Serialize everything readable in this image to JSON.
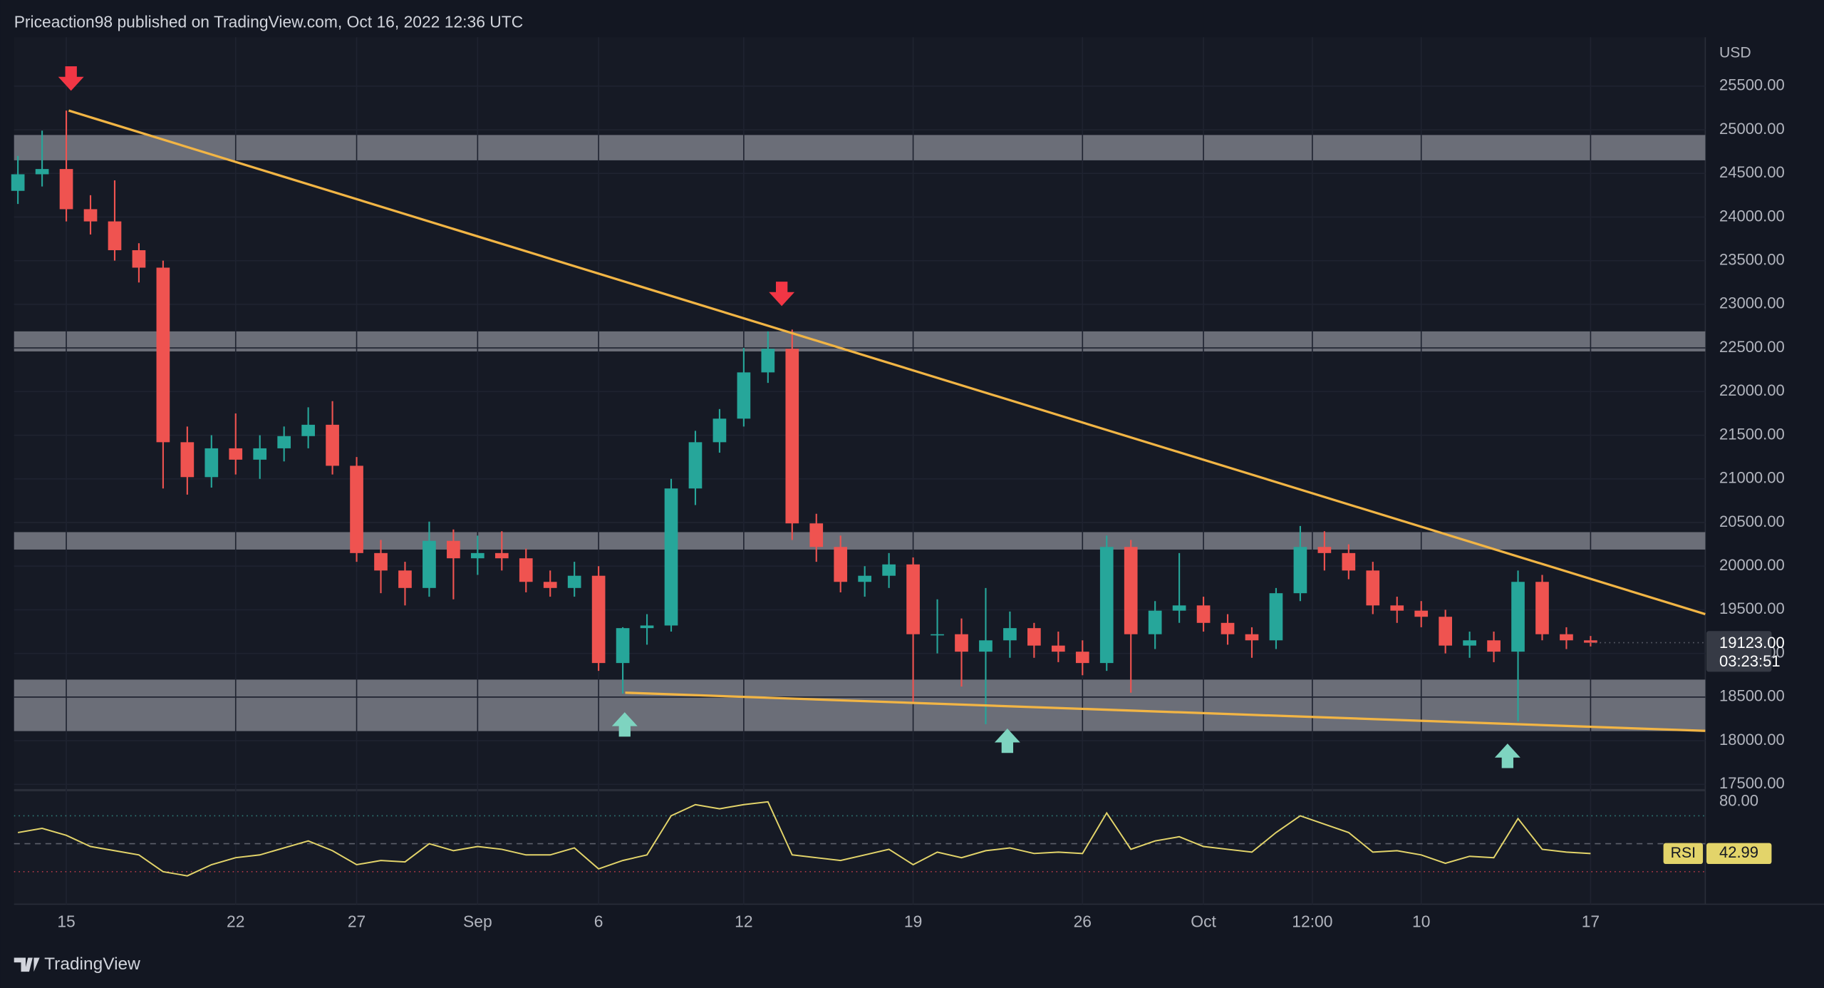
{
  "header": {
    "text": "Priceaction98 published on TradingView.com, Oct 16, 2022 12:36 UTC"
  },
  "footer": {
    "brand": "TradingView"
  },
  "chart_data": [
    {
      "type": "candlestick",
      "currency": "USD",
      "x": [
        -2,
        -1,
        0,
        1,
        2,
        3,
        4,
        5,
        6,
        7,
        8,
        9,
        10,
        11,
        12,
        13,
        14,
        15,
        16,
        17,
        18,
        19,
        20,
        21,
        22,
        23,
        24,
        25,
        26,
        27,
        28,
        29,
        30,
        31,
        32,
        33,
        34,
        35,
        36,
        37,
        38,
        39,
        40,
        41,
        42,
        43,
        44,
        45,
        46,
        47,
        48,
        49,
        50,
        51,
        52,
        53,
        54,
        55,
        56,
        57,
        58,
        59,
        60,
        61,
        62,
        63
      ],
      "open": [
        24300,
        24490,
        24550,
        24090,
        23950,
        23620,
        23420,
        21420,
        21020,
        21350,
        21220,
        21350,
        21490,
        21620,
        21150,
        20150,
        19950,
        19750,
        20290,
        20090,
        20150,
        20090,
        19820,
        19750,
        19890,
        18890,
        19290,
        19320,
        20890,
        21420,
        21690,
        22220,
        22490,
        20490,
        20220,
        19820,
        19890,
        20020,
        19220,
        19220,
        19020,
        19150,
        19290,
        19090,
        19020,
        18890,
        20220,
        19220,
        19490,
        19550,
        19350,
        19220,
        19150,
        19690,
        20220,
        20150,
        19950,
        19550,
        19490,
        19420,
        19090,
        19150,
        19020,
        19820,
        19220,
        19150
      ],
      "high": [
        24700,
        24990,
        25220,
        24250,
        24420,
        23700,
        23500,
        21600,
        21500,
        21750,
        21500,
        21600,
        21820,
        21890,
        21250,
        20300,
        20050,
        20510,
        20420,
        20350,
        20400,
        20200,
        19950,
        20050,
        20000,
        19300,
        19450,
        21000,
        21550,
        21800,
        22500,
        22690,
        22710,
        20600,
        20350,
        20000,
        20150,
        20100,
        19620,
        19400,
        19750,
        19480,
        19350,
        19250,
        19150,
        20350,
        20300,
        19600,
        20150,
        19650,
        19450,
        19300,
        19750,
        20460,
        20400,
        20250,
        20050,
        19650,
        19600,
        19500,
        19250,
        19250,
        19950,
        19900,
        19300,
        19200
      ],
      "low": [
        24150,
        24350,
        23950,
        23800,
        23500,
        23250,
        20890,
        20820,
        20900,
        21050,
        21000,
        21200,
        21350,
        21050,
        20050,
        19690,
        19550,
        19650,
        19620,
        19900,
        19950,
        19700,
        19650,
        19650,
        18800,
        18540,
        19100,
        19250,
        20700,
        21300,
        21600,
        22100,
        20300,
        20050,
        19700,
        19650,
        19750,
        18420,
        19000,
        18620,
        18190,
        18950,
        18950,
        18900,
        18750,
        18800,
        18550,
        19050,
        19350,
        19250,
        19100,
        18950,
        19050,
        19600,
        19950,
        19850,
        19450,
        19350,
        19300,
        19000,
        18950,
        18900,
        18220,
        19150,
        19050,
        19080
      ],
      "close": [
        24490,
        24550,
        24090,
        23950,
        23620,
        23420,
        21420,
        21020,
        21350,
        21220,
        21350,
        21490,
        21620,
        21150,
        20150,
        19950,
        19750,
        20290,
        20090,
        20150,
        20090,
        19820,
        19750,
        19890,
        18890,
        19290,
        19320,
        20890,
        21420,
        21690,
        22220,
        22490,
        20490,
        20220,
        19820,
        19890,
        20020,
        19220,
        19220,
        19020,
        19150,
        19290,
        19090,
        19020,
        18890,
        20220,
        19220,
        19490,
        19550,
        19350,
        19220,
        19150,
        19690,
        20220,
        20150,
        19950,
        19550,
        19490,
        19420,
        19090,
        19150,
        19020,
        19820,
        19220,
        19150,
        19123
      ],
      "up_color": "#26a69a",
      "down_color": "#ef5350",
      "last_label": "19123.00",
      "countdown": "03:23:51",
      "xlim": [
        -2.16,
        67.74
      ],
      "xticks": [
        {
          "value": 0,
          "label": "15"
        },
        {
          "value": 7,
          "label": "22"
        },
        {
          "value": 12,
          "label": "27"
        },
        {
          "value": 17,
          "label": "Sep"
        },
        {
          "value": 22,
          "label": "6"
        },
        {
          "value": 28,
          "label": "12"
        },
        {
          "value": 35,
          "label": "19"
        },
        {
          "value": 42,
          "label": "26"
        },
        {
          "value": 47,
          "label": "Oct"
        },
        {
          "value": 51.5,
          "label": "12:00"
        },
        {
          "value": 56,
          "label": "10"
        },
        {
          "value": 63,
          "label": "17"
        }
      ],
      "ylim": [
        17460,
        26060
      ],
      "yticks": [
        {
          "value": 17500,
          "label": "17500.00"
        },
        {
          "value": 18000,
          "label": "18000.00"
        },
        {
          "value": 18500,
          "label": "18500.00"
        },
        {
          "value": 19000,
          "label": "19000.00"
        },
        {
          "value": 19500,
          "label": "19500.00"
        },
        {
          "value": 20000,
          "label": "20000.00"
        },
        {
          "value": 20500,
          "label": "20500.00"
        },
        {
          "value": 21000,
          "label": "21000.00"
        },
        {
          "value": 21500,
          "label": "21500.00"
        },
        {
          "value": 22000,
          "label": "22000.00"
        },
        {
          "value": 22500,
          "label": "22500.00"
        },
        {
          "value": 23000,
          "label": "23000.00"
        },
        {
          "value": 23500,
          "label": "23500.00"
        },
        {
          "value": 24000,
          "label": "24000.00"
        },
        {
          "value": 24500,
          "label": "24500.00"
        },
        {
          "value": 25000,
          "label": "25000.00"
        },
        {
          "value": 25500,
          "label": "25500.00"
        }
      ],
      "zones": [
        [
          24650,
          24940
        ],
        [
          22460,
          22690
        ],
        [
          20190,
          20390
        ],
        [
          18110,
          18700
        ]
      ],
      "zone_color": "#6b6e78",
      "trendlines": [
        {
          "x": [
            0.1,
            67.74
          ],
          "y": [
            25220,
            19450
          ]
        },
        {
          "x": [
            23.1,
            67.74
          ],
          "y": [
            18550,
            18113
          ]
        }
      ],
      "trendline_color": "#f2b545"
    },
    {
      "type": "line",
      "name": "RSI",
      "color": "#e3d46a",
      "x": [
        -2,
        -1,
        0,
        1,
        2,
        3,
        4,
        5,
        6,
        7,
        8,
        9,
        10,
        11,
        12,
        13,
        14,
        15,
        16,
        17,
        18,
        19,
        20,
        21,
        22,
        23,
        24,
        25,
        26,
        27,
        28,
        29,
        30,
        31,
        32,
        33,
        34,
        35,
        36,
        37,
        38,
        39,
        40,
        41,
        42,
        43,
        44,
        45,
        46,
        47,
        48,
        49,
        50,
        51,
        52,
        53,
        54,
        55,
        56,
        57,
        58,
        59,
        60,
        61,
        62,
        63
      ],
      "values": [
        58,
        61,
        56,
        48,
        45,
        42,
        30,
        27,
        35,
        40,
        42,
        47,
        52,
        45,
        35,
        38,
        37,
        50,
        45,
        48,
        46,
        42,
        42,
        47,
        32,
        38,
        42,
        70,
        78,
        75,
        78,
        80,
        42,
        40,
        38,
        42,
        46,
        35,
        44,
        40,
        45,
        47,
        43,
        44,
        43,
        72,
        46,
        52,
        55,
        48,
        46,
        44,
        58,
        70,
        64,
        58,
        44,
        45,
        42,
        36,
        41,
        40,
        68,
        46,
        44,
        42.99
      ],
      "xlim": [
        -2.16,
        67.74
      ],
      "ylim": [
        6.7,
        87.5
      ],
      "yticks": [
        {
          "value": 80,
          "label": "80.00"
        }
      ],
      "levels": [
        70,
        50,
        30
      ],
      "level_colors": [
        "#2f7d78",
        "#5d606b",
        "#b03a48"
      ]
    }
  ]
}
